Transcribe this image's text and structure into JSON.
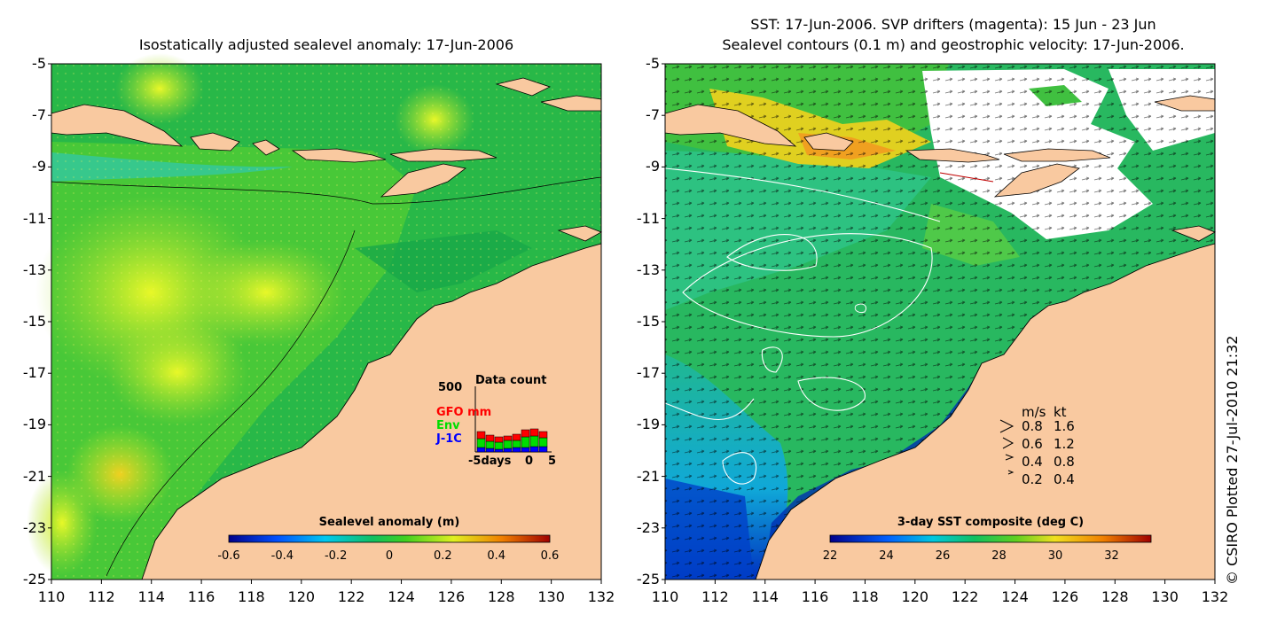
{
  "left_panel": {
    "title": "Isostatically adjusted sealevel anomaly: 17-Jun-2006",
    "y_ticks": [
      "-5",
      "-7",
      "-9",
      "-11",
      "-13",
      "-15",
      "-17",
      "-19",
      "-21",
      "-23",
      "-25"
    ],
    "x_ticks": [
      "110",
      "112",
      "114",
      "116",
      "118",
      "120",
      "122",
      "124",
      "126",
      "128",
      "130",
      "132"
    ],
    "colorbar": {
      "title": "Sealevel anomaly (m)",
      "ticks": [
        "-0.6",
        "-0.4",
        "-0.2",
        "0",
        "0.2",
        "0.4",
        "0.6"
      ]
    },
    "inset": {
      "title": "Data count",
      "y_label": "500",
      "legend": [
        {
          "label": "GFO mm",
          "color": "#ff0000"
        },
        {
          "label": "Env",
          "color": "#00dd00"
        },
        {
          "label": "J-1C",
          "color": "#0000ff"
        }
      ],
      "x_left": "-5days",
      "x_mid": "0",
      "x_right": "5"
    }
  },
  "right_panel": {
    "title_line1": "SST: 17-Jun-2006. SVP drifters (magenta): 15 Jun - 23 Jun",
    "title_line2": "Sealevel contours (0.1 m) and geostrophic velocity: 17-Jun-2006.",
    "y_ticks": [
      "-5",
      "-7",
      "-9",
      "-11",
      "-13",
      "-15",
      "-17",
      "-19",
      "-21",
      "-23",
      "-25"
    ],
    "x_ticks": [
      "110",
      "112",
      "114",
      "116",
      "118",
      "120",
      "122",
      "124",
      "126",
      "128",
      "130",
      "132"
    ],
    "colorbar": {
      "title": "3-day SST composite (deg C)",
      "ticks": [
        "22",
        "24",
        "26",
        "28",
        "30",
        "32"
      ]
    },
    "velocity_legend": {
      "header_ms": "m/s",
      "header_kt": "kt",
      "rows": [
        {
          "ms": "0.8",
          "kt": "1.6"
        },
        {
          "ms": "0.6",
          "kt": "1.2"
        },
        {
          "ms": "0.4",
          "kt": "0.8"
        },
        {
          "ms": "0.2",
          "kt": "0.4"
        }
      ]
    }
  },
  "credit": "© CSIRO Plotted 27-Jul-2010 21:32",
  "colors": {
    "land": "#f9c9a0",
    "ocean_green": "#22bb44",
    "sea_yellow": "#c8f028"
  }
}
